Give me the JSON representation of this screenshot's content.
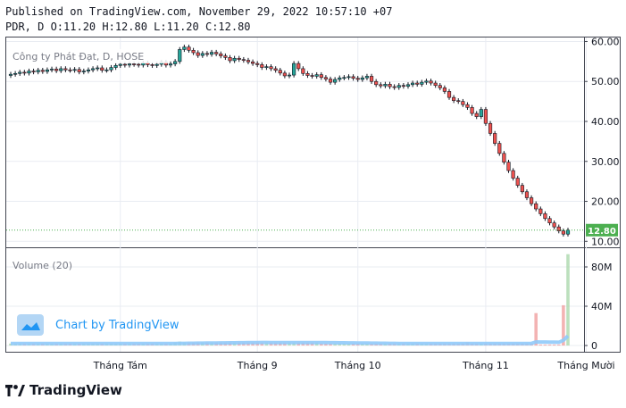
{
  "header": {
    "published": "Published on TradingView.com, November 29, 2022 10:57:10 +07",
    "ohlc": "PDR, D O:11.20 H:12.80 L:11.20 C:12.80"
  },
  "legend": {
    "symbol_title": "Công ty Phát Đạt, D, HOSE",
    "volume_title": "Volume (20)",
    "watermark": "Chart by TradingView"
  },
  "footer": {
    "brand": "TradingView"
  },
  "colors": {
    "up": "#26a69a",
    "down": "#ef5350",
    "ma": "#90caf9",
    "grid": "#e9ecf2",
    "last_label": "#4caf50"
  },
  "chart_data": {
    "type": "candlestick",
    "price_axis": {
      "ticks": [
        10,
        20,
        30,
        40,
        50,
        60
      ],
      "tick_labels": [
        "10.00",
        "20.00",
        "30.00",
        "40.00",
        "50.00",
        "60.00"
      ],
      "range": [
        8.5,
        61
      ]
    },
    "volume_axis": {
      "ticks": [
        0,
        40,
        80
      ],
      "tick_labels": [
        "0",
        "40M",
        "80M"
      ],
      "unit": "M",
      "range": [
        0,
        100
      ]
    },
    "x_labels": [
      {
        "label": "Tháng Tám",
        "index": 24
      },
      {
        "label": "Tháng 9",
        "index": 54
      },
      {
        "label": "Tháng 10",
        "index": 76
      },
      {
        "label": "Tháng 11",
        "index": 104
      },
      {
        "label": "Tháng Mười",
        "index": 126
      }
    ],
    "last_price": 12.8,
    "last_price_label": "12.80",
    "closes": [
      51.8,
      52.0,
      52.3,
      52.1,
      52.6,
      52.4,
      52.8,
      52.5,
      52.9,
      53.1,
      52.7,
      53.2,
      52.9,
      52.8,
      53.0,
      52.4,
      52.6,
      52.9,
      53.2,
      53.4,
      52.8,
      52.9,
      53.5,
      54.0,
      54.3,
      54.1,
      54.4,
      54.3,
      54.1,
      54.6,
      54.2,
      54.0,
      54.3,
      54.8,
      54.1,
      54.4,
      55.0,
      58.0,
      58.6,
      57.8,
      57.2,
      56.5,
      57.0,
      56.8,
      57.3,
      56.9,
      56.4,
      56.0,
      55.2,
      55.8,
      55.5,
      55.3,
      54.9,
      54.5,
      54.2,
      53.5,
      53.7,
      53.2,
      52.8,
      52.1,
      51.4,
      51.6,
      54.5,
      53.2,
      52.0,
      51.5,
      51.3,
      51.7,
      51.0,
      50.6,
      49.8,
      50.5,
      50.9,
      51.0,
      51.2,
      50.8,
      50.5,
      50.9,
      51.3,
      50.0,
      49.2,
      48.9,
      49.3,
      48.7,
      48.5,
      49.0,
      48.8,
      49.2,
      49.6,
      49.3,
      49.8,
      50.1,
      49.6,
      49.0,
      48.4,
      47.5,
      46.0,
      45.2,
      45.0,
      44.2,
      43.5,
      42.0,
      41.2,
      43.0,
      39.5,
      37.0,
      34.5,
      32.0,
      29.8,
      27.7,
      25.8,
      24.0,
      22.4,
      20.9,
      19.4,
      18.1,
      16.9,
      15.7,
      14.6,
      13.6,
      12.6,
      11.8,
      12.8
    ],
    "volume_M": [
      2,
      2,
      2,
      2,
      2,
      2,
      2,
      2,
      2,
      2,
      2,
      2,
      2,
      2,
      2,
      2,
      2,
      2,
      2,
      2,
      2,
      2,
      2,
      2,
      2,
      2,
      2,
      2,
      2,
      2,
      2,
      2,
      2,
      2,
      2,
      2,
      3,
      4,
      3,
      3,
      3,
      3,
      3,
      3,
      3,
      3,
      3,
      3,
      3,
      3,
      3,
      3,
      3,
      3,
      3,
      3,
      3,
      3,
      3,
      3,
      3,
      3,
      3,
      3,
      3,
      3,
      3,
      3,
      2,
      2,
      2,
      2,
      2,
      2,
      2,
      2,
      2,
      2,
      2,
      2,
      2,
      2,
      2,
      2,
      2,
      2,
      2,
      2,
      2,
      2,
      2,
      2,
      2,
      2,
      2,
      2,
      2,
      2,
      2,
      2,
      3,
      2,
      2,
      2,
      2,
      2,
      2,
      2,
      2,
      2,
      2,
      2,
      2,
      2,
      2,
      33,
      1,
      1,
      1,
      1,
      1,
      41,
      93
    ]
  }
}
